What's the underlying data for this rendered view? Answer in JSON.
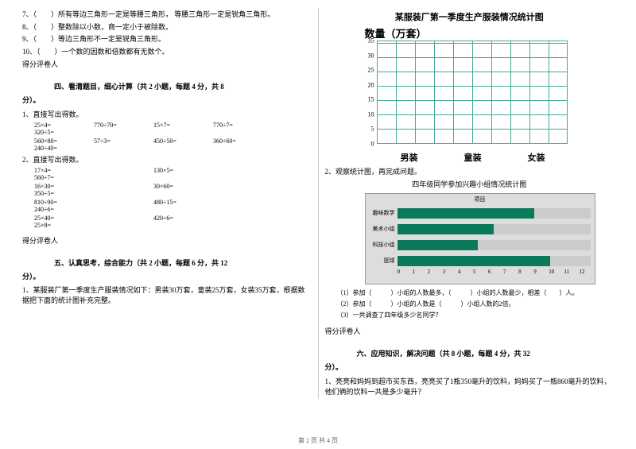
{
  "left": {
    "tf": [
      "7、（　　）所有等边三角形一定是等腰三角形， 等腰三角形一定是锐角三角形。",
      "8、（　　）整数除以小数，商一定小于被除数。",
      "9、（　　）等边三角形不一定是锐角三角形。",
      "10、（　　）一个数的因数和倍数都有无数个。"
    ],
    "score_h1": "得分",
    "score_h2": "评卷人",
    "sec4_title": "四、看清题目，细心计算（共 2 小题，每题 4 分，共 8",
    "fen": "分）。",
    "q1": "1、直接写出得数。",
    "calc1": [
      [
        "25×4=",
        "770÷70=",
        "15×7=",
        "770÷7=",
        "320÷5="
      ],
      [
        "560×80=",
        "57÷3=",
        "450÷50=",
        "360÷60=",
        "240÷40="
      ]
    ],
    "q2": "2、直接写出得数。",
    "calc2": [
      [
        "17×4=",
        "",
        "130×5=",
        "",
        "560÷7="
      ],
      [
        "16×30=",
        "",
        "30×60=",
        "",
        "350÷5="
      ],
      [
        "810÷90=",
        "",
        "480÷15=",
        "",
        "240÷6="
      ],
      [
        "25×40=",
        "",
        "420÷6=",
        "",
        "25×8="
      ]
    ],
    "sec5_title": "五、认真思考，综合能力（共 2 小题，每题 6 分，共 12",
    "q5_1": "1、某服装厂第一季度生产服装情况如下：男装30万套，童装25万套，女装35万套，根据数据把下面的统计图补充完整。"
  },
  "right": {
    "chart1": {
      "title": "某服装厂第一季度生产服装情况统计图",
      "ylabel": "数量（万套）",
      "yticks": [
        "35",
        "30",
        "25",
        "20",
        "15",
        "10",
        "5",
        "0"
      ],
      "xlabels": [
        "男装",
        "童装",
        "女装"
      ],
      "grid_color": "#4a9"
    },
    "q2": "2、观察统计图，再完成问题。",
    "chart2": {
      "title": "四年级同学参加兴趣小组情况统计图",
      "legend": "项目",
      "rows": [
        {
          "label": "趣味数学",
          "value": 8.5
        },
        {
          "label": "美术小组",
          "value": 6
        },
        {
          "label": "科技小组",
          "value": 5
        },
        {
          "label": "篮球",
          "value": 9.5
        }
      ],
      "xmax": 12,
      "xticks": [
        "0",
        "1",
        "2",
        "3",
        "4",
        "5",
        "6",
        "7",
        "8",
        "9",
        "10",
        "11",
        "12"
      ],
      "bar_color": "#0b7a5a",
      "bg_color": "#ddd"
    },
    "questions": [
      "（1）参加（　　　）小组的人数最多，（　　　）小组的人数最少，相差（　　）人。",
      "（2）参加（　　　）小组的人数是（　　　）小组人数的2倍。",
      "（3）一共调查了四年级多少名同学？"
    ],
    "score_h1": "得分",
    "score_h2": "评卷人",
    "sec6_title": "六、应用知识，解决问题（共 8 小题，每题 4 分，共 32",
    "fen": "分）。",
    "q6_1": "1、亮亮和妈妈到超市买东西，亮亮买了1瓶350毫升的饮料，妈妈买了一瓶860毫升的饮料，他们俩的饮料一共是多少毫升？"
  },
  "footer": "第 2 页 共 4 页"
}
